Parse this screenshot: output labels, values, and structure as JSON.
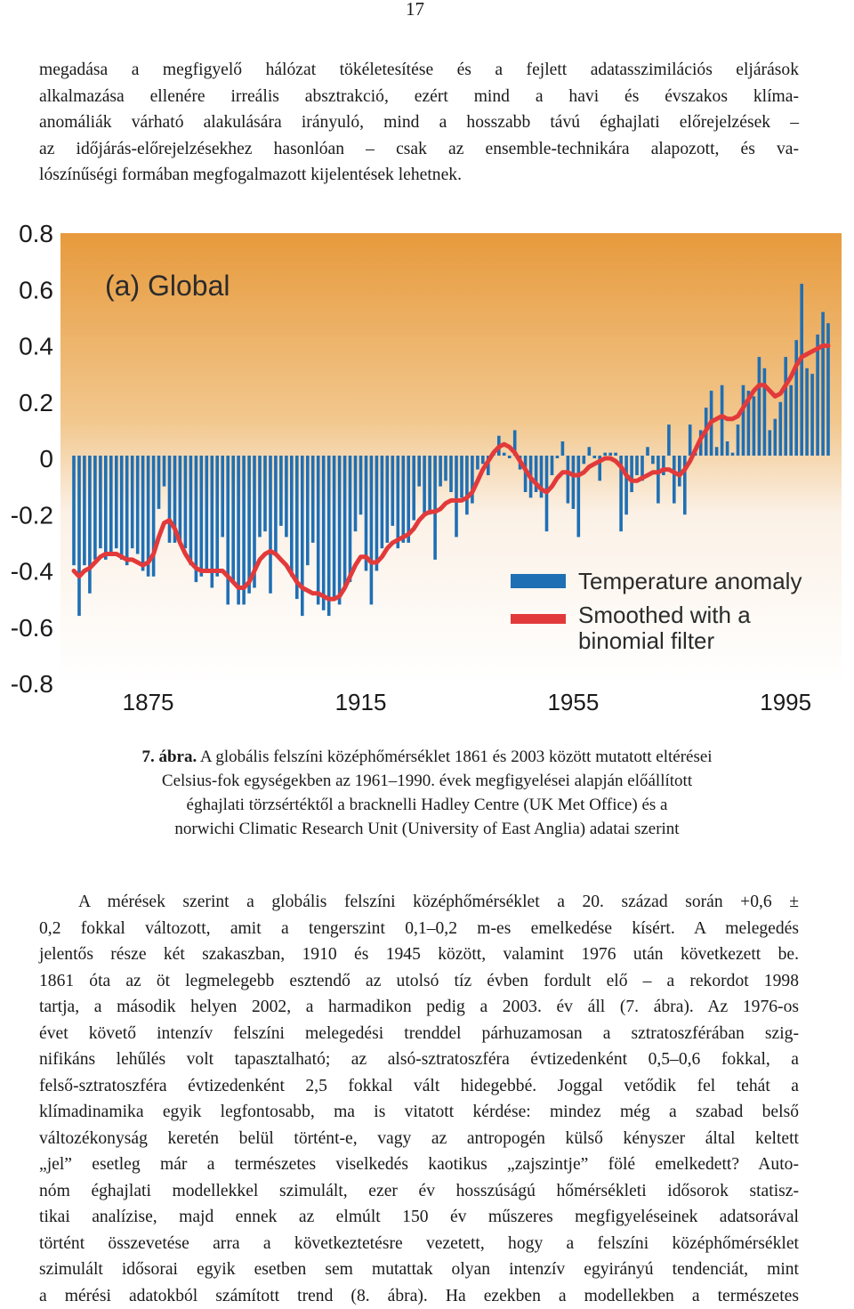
{
  "page_number": "17",
  "intro_lines": [
    "megadása a megfigyelő hálózat tökéletesítése és a fejlett adatasszimilációs eljárások",
    "alkalmazása ellenére irreális absztrakció, ezért mind a havi és évszakos klíma-",
    "anomáliák várható alakulására irányuló, mind a hosszabb távú éghajlati előrejelzések –",
    "az időjárás-előrejelzésekhez hasonlóan – csak az ensemble-technikára alapozott, és va-",
    "lószínűségi formában megfogalmazott kijelentések lehetnek."
  ],
  "chart_data": {
    "type": "bar",
    "panel_label": "(a) Global",
    "x_tick_labels": [
      "1875",
      "1915",
      "1955",
      "1995"
    ],
    "y_tick_labels": [
      "0.8",
      "0.6",
      "0.4",
      "0.2",
      "0",
      "-0.2",
      "-0.4",
      "-0.6",
      "-0.8"
    ],
    "ylim": [
      -0.8,
      0.8
    ],
    "xlim": [
      1861,
      2003
    ],
    "legend": [
      "Temperature anomaly",
      "Smoothed with a binomial filter"
    ],
    "legend_position": "bottom-right",
    "colors": {
      "bars": "#1f6fb4",
      "smoothed": "#e23a3a",
      "bg_top": "#e79a3c",
      "bg_bottom": "#ffffff"
    },
    "years": [
      1861,
      1862,
      1863,
      1864,
      1865,
      1866,
      1867,
      1868,
      1869,
      1870,
      1871,
      1872,
      1873,
      1874,
      1875,
      1876,
      1877,
      1878,
      1879,
      1880,
      1881,
      1882,
      1883,
      1884,
      1885,
      1886,
      1887,
      1888,
      1889,
      1890,
      1891,
      1892,
      1893,
      1894,
      1895,
      1896,
      1897,
      1898,
      1899,
      1900,
      1901,
      1902,
      1903,
      1904,
      1905,
      1906,
      1907,
      1908,
      1909,
      1910,
      1911,
      1912,
      1913,
      1914,
      1915,
      1916,
      1917,
      1918,
      1919,
      1920,
      1921,
      1922,
      1923,
      1924,
      1925,
      1926,
      1927,
      1928,
      1929,
      1930,
      1931,
      1932,
      1933,
      1934,
      1935,
      1936,
      1937,
      1938,
      1939,
      1940,
      1941,
      1942,
      1943,
      1944,
      1945,
      1946,
      1947,
      1948,
      1949,
      1950,
      1951,
      1952,
      1953,
      1954,
      1955,
      1956,
      1957,
      1958,
      1959,
      1960,
      1961,
      1962,
      1963,
      1964,
      1965,
      1966,
      1967,
      1968,
      1969,
      1970,
      1971,
      1972,
      1973,
      1974,
      1975,
      1976,
      1977,
      1978,
      1979,
      1980,
      1981,
      1982,
      1983,
      1984,
      1985,
      1986,
      1987,
      1988,
      1989,
      1990,
      1991,
      1992,
      1993,
      1994,
      1995,
      1996,
      1997,
      1998,
      1999,
      2000,
      2001,
      2002,
      2003
    ],
    "anomaly": [
      -0.38,
      -0.56,
      -0.38,
      -0.48,
      -0.36,
      -0.32,
      -0.36,
      -0.34,
      -0.32,
      -0.36,
      -0.38,
      -0.32,
      -0.34,
      -0.4,
      -0.42,
      -0.42,
      -0.18,
      -0.1,
      -0.3,
      -0.3,
      -0.3,
      -0.32,
      -0.38,
      -0.44,
      -0.42,
      -0.4,
      -0.46,
      -0.42,
      -0.28,
      -0.52,
      -0.44,
      -0.52,
      -0.52,
      -0.48,
      -0.46,
      -0.28,
      -0.26,
      -0.48,
      -0.34,
      -0.24,
      -0.28,
      -0.42,
      -0.5,
      -0.56,
      -0.38,
      -0.3,
      -0.52,
      -0.54,
      -0.56,
      -0.5,
      -0.52,
      -0.46,
      -0.44,
      -0.26,
      -0.2,
      -0.4,
      -0.52,
      -0.4,
      -0.32,
      -0.3,
      -0.24,
      -0.32,
      -0.3,
      -0.3,
      -0.22,
      -0.1,
      -0.2,
      -0.2,
      -0.36,
      -0.1,
      -0.08,
      -0.12,
      -0.28,
      -0.14,
      -0.2,
      -0.16,
      -0.04,
      -0.02,
      -0.06,
      0.02,
      0.08,
      0.02,
      0.0,
      0.1,
      -0.04,
      -0.12,
      -0.14,
      -0.12,
      -0.14,
      -0.26,
      -0.06,
      0.0,
      0.06,
      -0.16,
      -0.18,
      -0.28,
      -0.02,
      0.04,
      0.0,
      -0.08,
      0.02,
      0.02,
      0.02,
      -0.26,
      -0.2,
      -0.12,
      -0.06,
      -0.08,
      0.04,
      -0.02,
      -0.16,
      -0.06,
      0.12,
      -0.16,
      -0.1,
      -0.2,
      0.12,
      0.02,
      0.1,
      0.18,
      0.24,
      0.04,
      0.26,
      0.06,
      0.02,
      0.12,
      0.26,
      0.24,
      0.22,
      0.36,
      0.32,
      0.1,
      0.14,
      0.2,
      0.36,
      0.26,
      0.42,
      0.62,
      0.32,
      0.3,
      0.44,
      0.52,
      0.48
    ],
    "smoothed": [
      -0.4,
      -0.42,
      -0.4,
      -0.39,
      -0.37,
      -0.35,
      -0.34,
      -0.34,
      -0.34,
      -0.35,
      -0.36,
      -0.36,
      -0.37,
      -0.38,
      -0.37,
      -0.34,
      -0.28,
      -0.23,
      -0.22,
      -0.25,
      -0.3,
      -0.34,
      -0.37,
      -0.39,
      -0.4,
      -0.4,
      -0.4,
      -0.4,
      -0.4,
      -0.42,
      -0.44,
      -0.46,
      -0.46,
      -0.44,
      -0.4,
      -0.36,
      -0.34,
      -0.33,
      -0.34,
      -0.36,
      -0.38,
      -0.41,
      -0.44,
      -0.46,
      -0.47,
      -0.48,
      -0.48,
      -0.49,
      -0.5,
      -0.5,
      -0.49,
      -0.46,
      -0.42,
      -0.38,
      -0.35,
      -0.35,
      -0.37,
      -0.37,
      -0.35,
      -0.32,
      -0.3,
      -0.29,
      -0.28,
      -0.27,
      -0.25,
      -0.22,
      -0.2,
      -0.19,
      -0.19,
      -0.18,
      -0.16,
      -0.15,
      -0.15,
      -0.15,
      -0.14,
      -0.12,
      -0.08,
      -0.04,
      -0.01,
      0.02,
      0.04,
      0.05,
      0.04,
      0.02,
      -0.01,
      -0.04,
      -0.07,
      -0.09,
      -0.11,
      -0.12,
      -0.1,
      -0.07,
      -0.05,
      -0.05,
      -0.06,
      -0.06,
      -0.05,
      -0.03,
      -0.02,
      -0.01,
      0.0,
      0.0,
      -0.01,
      -0.03,
      -0.06,
      -0.08,
      -0.08,
      -0.07,
      -0.06,
      -0.05,
      -0.05,
      -0.04,
      -0.04,
      -0.05,
      -0.06,
      -0.04,
      -0.01,
      0.03,
      0.07,
      0.1,
      0.13,
      0.14,
      0.15,
      0.14,
      0.14,
      0.15,
      0.18,
      0.21,
      0.24,
      0.26,
      0.26,
      0.24,
      0.22,
      0.23,
      0.26,
      0.29,
      0.33,
      0.36,
      0.37,
      0.38,
      0.39,
      0.4,
      0.4
    ]
  },
  "caption": {
    "label": "7. ábra.",
    "lines": [
      "A globális felszíni középhőmérséklet 1861 és 2003 között mutatott eltérései",
      "Celsius-fok egységekben az 1961–1990. évek megfigyelései alapján előállított",
      "éghajlati törzsértéktől a bracknelli Hadley Centre (UK Met Office) és a",
      "norwichi Climatic Research Unit (University of East Anglia) adatai szerint"
    ]
  },
  "body_lines": [
    "A mérések szerint a globális felszíni középhőmérséklet a 20. század során +0,6 ±",
    "0,2 fokkal változott, amit a tengerszint 0,1–0,2 m-es emelkedése kísért. A melegedés",
    "jelentős része két szakaszban, 1910 és 1945 között, valamint 1976 után következett be.",
    "1861 óta az öt legmelegebb esztendő az utolsó tíz évben fordult elő – a rekordot 1998",
    "tartja, a második helyen 2002, a harmadikon pedig a 2003. év áll (7. ábra). Az 1976-os",
    "évet követő intenzív felszíni melegedési trenddel párhuzamosan a sztratoszférában szig-",
    "nifikáns lehűlés volt tapasztalható; az alsó-sztratoszféra évtizedenként 0,5–0,6 fokkal, a",
    "felső-sztratoszféra évtizedenként 2,5 fokkal vált hidegebbé. Joggal vetődik fel tehát a",
    "klímadinamika egyik legfontosabb, ma is vitatott kérdése: mindez még a szabad belső",
    "változékonyság keretén belül történt-e, vagy az antropogén külső kényszer által keltett",
    "„jel” esetleg már a természetes viselkedés kaotikus „zajszintje” fölé emelkedett? Auto-",
    "nóm éghajlati modellekkel szimulált, ezer év hosszúságú hőmérsékleti idősorok statisz-",
    "tikai analízise, majd ennek az elmúlt 150 év műszeres megfigyeléseinek adatsorával",
    "történt összevetése arra a következtetésre vezetett, hogy a felszíni középhőmérséklet",
    "szimulált idősorai egyik esetben sem mutattak olyan intenzív egyirányú tendenciát, mint",
    "a mérési adatokból számított trend (8. ábra). Ha ezekben a modellekben a természetes"
  ]
}
